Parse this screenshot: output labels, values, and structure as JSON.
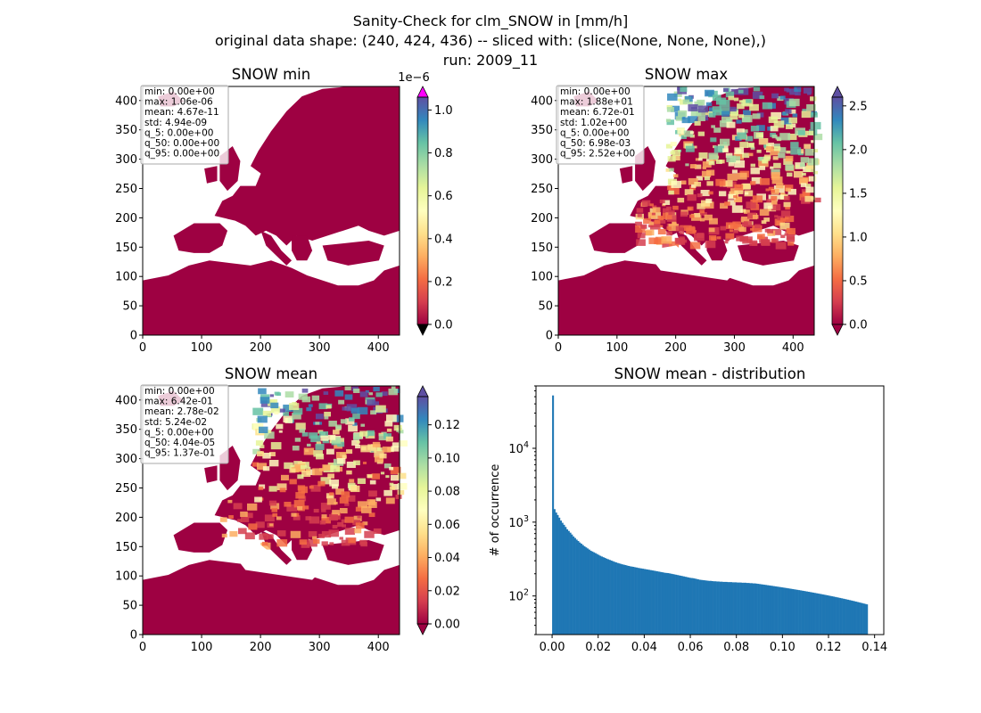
{
  "figure": {
    "title_lines": [
      "Sanity-Check for clm_SNOW in [mm/h]",
      "original data shape: (240, 424, 436) -- sliced with: (slice(None, None, None),)",
      "run: 2009_11"
    ]
  },
  "colors": {
    "land_low": "#9e0142",
    "cmap_spectral": [
      "#9e0142",
      "#d53e4f",
      "#f46d43",
      "#fdae61",
      "#fee08b",
      "#ffffbf",
      "#e6f598",
      "#abdda4",
      "#66c2a5",
      "#3288bd",
      "#5e4fa2"
    ],
    "extend_over_min": "#ff00ff",
    "hist_bar": "#1f77b4",
    "sea": "#ffffff"
  },
  "chart_data": [
    {
      "type": "heatmap",
      "title": "SNOW min",
      "xlim": [
        0,
        436
      ],
      "ylim": [
        0,
        424
      ],
      "xticks": [
        "0",
        "100",
        "200",
        "300",
        "400"
      ],
      "yticks": [
        "0",
        "50",
        "100",
        "150",
        "200",
        "250",
        "300",
        "350",
        "400"
      ],
      "colorbar": {
        "range": [
          0,
          1.06e-06
        ],
        "ticks": [
          "0.0",
          "0.2",
          "0.4",
          "0.6",
          "0.8",
          "1.0"
        ],
        "offset_label": "1e−6",
        "extend": "both"
      },
      "stats": [
        "min: 0.00e+00",
        "max: 1.06e-06",
        "mean: 4.67e-11",
        "std: 4.94e-09",
        "q_5: 0.00e+00",
        "q_50: 0.00e+00",
        "q_95: 0.00e+00"
      ],
      "field_level": "uniform-min"
    },
    {
      "type": "heatmap",
      "title": "SNOW max",
      "xlim": [
        0,
        436
      ],
      "ylim": [
        0,
        424
      ],
      "xticks": [
        "0",
        "100",
        "200",
        "300",
        "400"
      ],
      "yticks": [
        "0",
        "50",
        "100",
        "150",
        "200",
        "250",
        "300",
        "350",
        "400"
      ],
      "colorbar": {
        "range": [
          0,
          2.6
        ],
        "ticks": [
          "0.0",
          "0.5",
          "1.0",
          "1.5",
          "2.0",
          "2.5"
        ],
        "offset_label": "",
        "extend": "both"
      },
      "stats": [
        "min: 0.00e+00",
        "max: 1.88e+01",
        "mean: 6.72e-01",
        "std: 1.02e+00",
        "q_5: 0.00e+00",
        "q_50: 6.98e-03",
        "q_95: 2.52e+00"
      ],
      "field_level": "high"
    },
    {
      "type": "heatmap",
      "title": "SNOW mean",
      "xlim": [
        0,
        436
      ],
      "ylim": [
        0,
        424
      ],
      "xticks": [
        "0",
        "100",
        "200",
        "300",
        "400"
      ],
      "yticks": [
        "0",
        "50",
        "100",
        "150",
        "200",
        "250",
        "300",
        "350",
        "400"
      ],
      "colorbar": {
        "range": [
          0,
          0.137
        ],
        "ticks": [
          "0.00",
          "0.02",
          "0.04",
          "0.06",
          "0.08",
          "0.10",
          "0.12"
        ],
        "offset_label": "",
        "extend": "both"
      },
      "stats": [
        "min: 0.00e+00",
        "max: 6.42e-01",
        "mean: 2.78e-02",
        "std: 5.24e-02",
        "q_5: 0.00e+00",
        "q_50: 4.04e-05",
        "q_95: 1.37e-01"
      ],
      "field_level": "medium"
    },
    {
      "type": "bar",
      "title": "SNOW mean - distribution",
      "xlabel": "",
      "ylabel": "# of occurrence",
      "xlim": [
        -0.007,
        0.144
      ],
      "yscale": "log",
      "ylim": [
        30,
        70000
      ],
      "xticks": [
        "0.00",
        "0.02",
        "0.04",
        "0.06",
        "0.08",
        "0.10",
        "0.12",
        "0.14"
      ],
      "yticks": [
        {
          "exp": "2",
          "value": 100
        },
        {
          "exp": "3",
          "value": 1000
        },
        {
          "exp": "4",
          "value": 10000
        }
      ],
      "ytick_base": "10",
      "bin_width": 0.000685,
      "x_start": 0.0,
      "counts": [
        52000,
        1500,
        1350,
        1250,
        1150,
        1050,
        980,
        920,
        860,
        800,
        760,
        720,
        680,
        640,
        610,
        580,
        555,
        530,
        510,
        490,
        470,
        455,
        440,
        425,
        410,
        400,
        390,
        380,
        370,
        360,
        350,
        342,
        335,
        328,
        320,
        314,
        308,
        302,
        296,
        290,
        285,
        280,
        276,
        272,
        268,
        265,
        262,
        258,
        255,
        252,
        250,
        248,
        245,
        243,
        240,
        238,
        236,
        234,
        232,
        230,
        228,
        226,
        224,
        222,
        220,
        218,
        216,
        214,
        212,
        210,
        208,
        206,
        205,
        204,
        202,
        200,
        198,
        196,
        194,
        192,
        190,
        188,
        186,
        184,
        182,
        180,
        178,
        176,
        175,
        174,
        172,
        170,
        168,
        166,
        165,
        164,
        163,
        162,
        161,
        160,
        160,
        159,
        158,
        158,
        157,
        157,
        156,
        156,
        155,
        155,
        155,
        154,
        154,
        154,
        153,
        153,
        153,
        152,
        152,
        152,
        151,
        151,
        151,
        150,
        150,
        149,
        149,
        148,
        148,
        147,
        146,
        145,
        144,
        143,
        142,
        141,
        140,
        139,
        138,
        137,
        136,
        135,
        134,
        133,
        132,
        131,
        130,
        129,
        128,
        127,
        126,
        125,
        124,
        123,
        122,
        121,
        120,
        119,
        118,
        117,
        116,
        115,
        114,
        113,
        112,
        111,
        110,
        109,
        108,
        107,
        106,
        105,
        104,
        103,
        102,
        101,
        100,
        99,
        98,
        97,
        96,
        95,
        94,
        93,
        92,
        91,
        90,
        89,
        88,
        87,
        86,
        85,
        84,
        83,
        82,
        81,
        80,
        79,
        78,
        77
      ]
    }
  ]
}
